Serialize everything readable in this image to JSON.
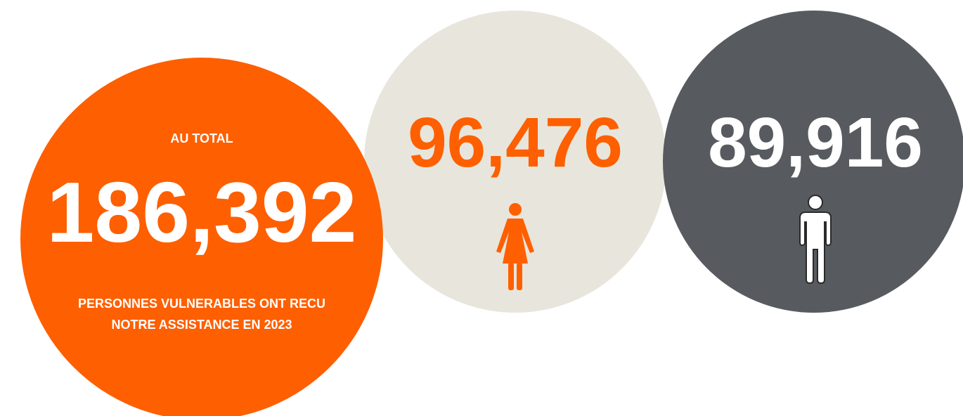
{
  "total": {
    "label": "AU TOTAL",
    "value": "186,392",
    "caption": "PERSONNES VULNERABLES ONT RECU NOTRE ASSISTANCE EN 2023"
  },
  "women": {
    "value": "96,476"
  },
  "men": {
    "value": "89,916"
  }
}
